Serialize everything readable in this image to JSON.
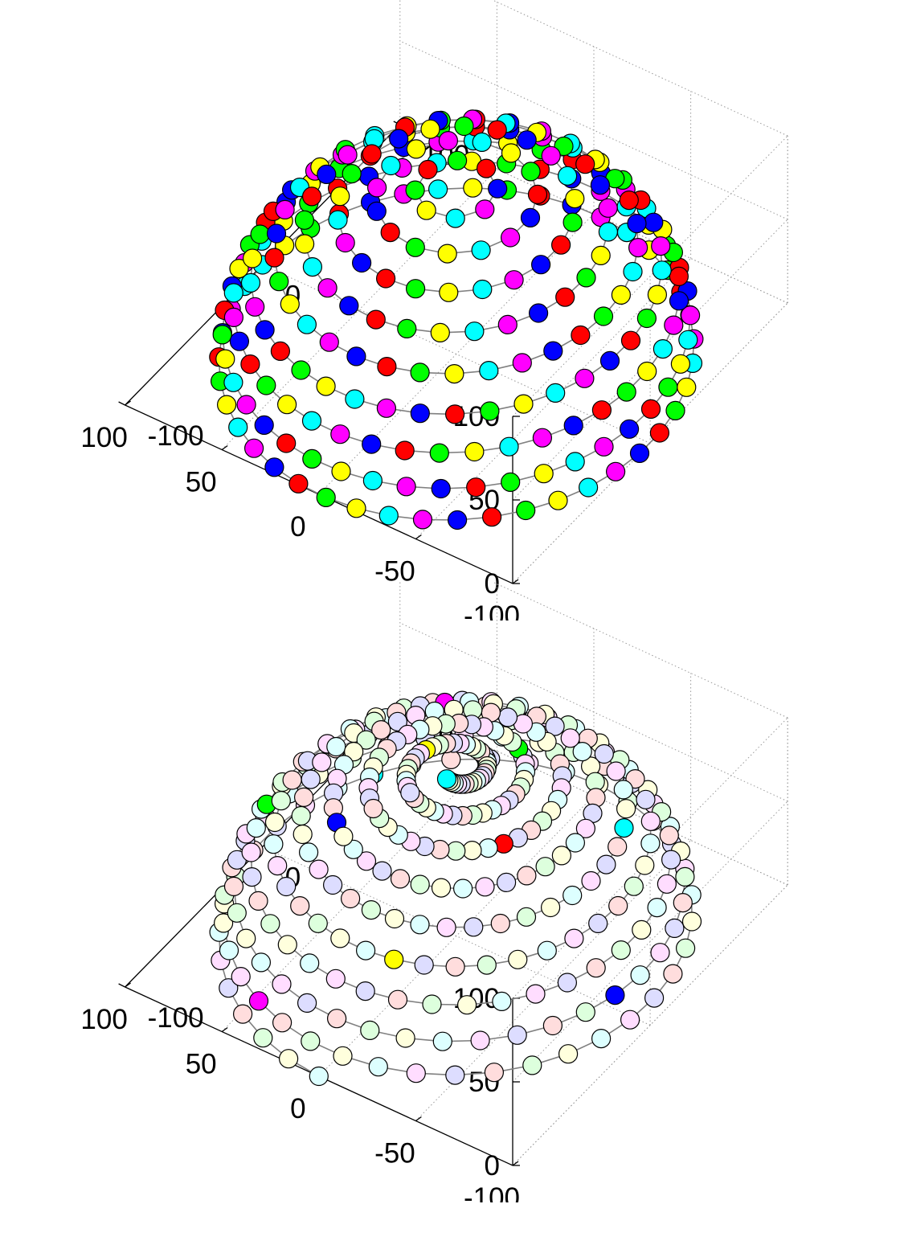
{
  "chart_data": [
    {
      "type": "scatter",
      "subtype": "3d-hemisphere-point-rings",
      "title": "",
      "xlabel": "",
      "ylabel": "",
      "zlabel": "",
      "xlim": [
        -100,
        100
      ],
      "ylim": [
        -100,
        100
      ],
      "zlim": [
        0,
        100
      ],
      "x_ticks": [
        "-100",
        "-50",
        "0",
        "50",
        "100"
      ],
      "y_ticks": [
        "-100",
        "0",
        "100"
      ],
      "z_ticks": [
        "0",
        "50",
        "100"
      ],
      "grid": "on",
      "rings": {
        "count": 9,
        "radius": 100,
        "elevation_deg": [
          0,
          10,
          20,
          30,
          40,
          50,
          60,
          70,
          80
        ],
        "points_per_ring": [
          43,
          42,
          40,
          37,
          33,
          28,
          22,
          15,
          8
        ],
        "connected_by_line": true
      },
      "marker_colors": [
        "#00ffff",
        "#ffff00",
        "#00ff00",
        "#ff0000",
        "#0000ff",
        "#ff00ff"
      ],
      "line_color": "#808080",
      "color_mode": "cycle"
    },
    {
      "type": "scatter",
      "subtype": "3d-hemisphere-point-spiral",
      "title": "",
      "xlabel": "",
      "ylabel": "",
      "zlabel": "",
      "xlim": [
        -100,
        100
      ],
      "ylim": [
        -100,
        100
      ],
      "zlim": [
        0,
        100
      ],
      "x_ticks": [
        "-100",
        "-50",
        "0",
        "50",
        "100"
      ],
      "y_ticks": [
        "-100",
        "0",
        "100"
      ],
      "z_ticks": [
        "0",
        "50",
        "100"
      ],
      "grid": "on",
      "spiral": {
        "points": 340,
        "radius": 100,
        "max_elevation_deg": 86,
        "turns": 9,
        "connected_by_line": true
      },
      "marker_colors": [
        "#00ffff",
        "#ffff00",
        "#00ff00",
        "#ff0000",
        "#0000ff",
        "#ff00ff"
      ],
      "faded_colors": [
        "#ddffff",
        "#ffffdd",
        "#ddffdd",
        "#ffdddd",
        "#ddddff",
        "#ffddff"
      ],
      "highlighted_point_count": 13,
      "line_color": "#808080",
      "color_mode": "cycle-pastel-with-saturated-path"
    }
  ]
}
